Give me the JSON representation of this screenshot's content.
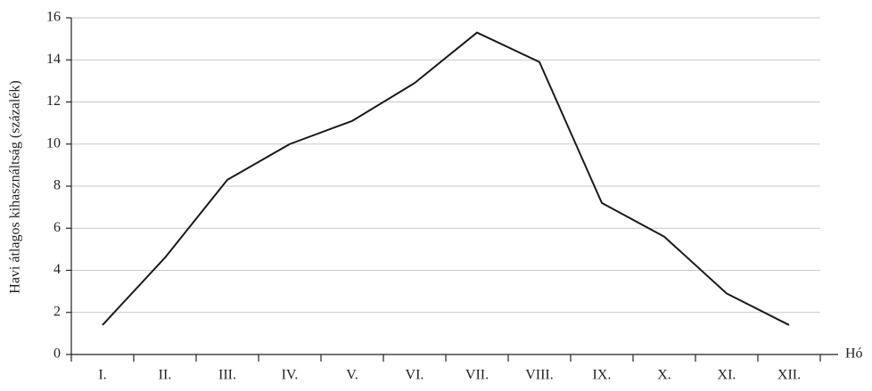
{
  "chart_data": {
    "type": "line",
    "y_label": "Havi átlagos kihasználtság (százalék)",
    "x_label": "Hó",
    "categories": [
      "I.",
      "II.",
      "III.",
      "IV.",
      "V.",
      "VI.",
      "VII.",
      "VIII.",
      "IX.",
      "X.",
      "XI.",
      "XII."
    ],
    "values": [
      1.4,
      4.6,
      8.3,
      10.0,
      11.1,
      12.9,
      15.3,
      13.9,
      7.2,
      5.6,
      2.9,
      1.4
    ],
    "color": "#1a1a1a",
    "ylim": [
      0,
      16
    ],
    "yticks": [
      0,
      2,
      4,
      6,
      8,
      10,
      12,
      14,
      16
    ],
    "grid": true
  }
}
